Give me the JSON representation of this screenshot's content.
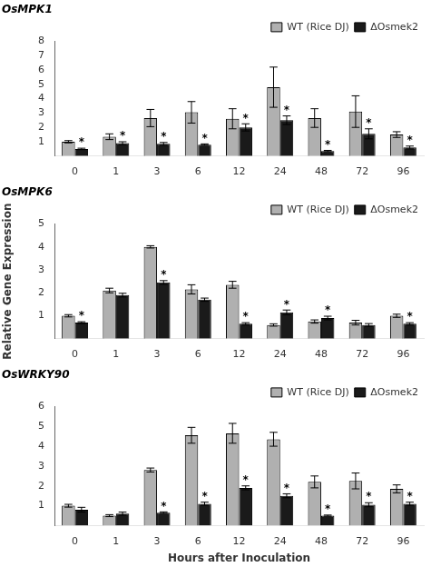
{
  "chart_data": [
    {
      "type": "bar",
      "title": "OsMPK1",
      "categories": [
        "0",
        "1",
        "3",
        "6",
        "12",
        "24",
        "48",
        "72",
        "96"
      ],
      "series": [
        {
          "name": "WT (Rice DJ)",
          "color": "#b0b0b0",
          "values": [
            1.0,
            1.35,
            2.65,
            3.05,
            2.6,
            4.8,
            2.65,
            3.1,
            1.5
          ],
          "errors": [
            0.08,
            0.2,
            0.6,
            0.75,
            0.7,
            1.4,
            0.65,
            1.1,
            0.2
          ],
          "significant": [
            false,
            false,
            false,
            false,
            false,
            false,
            false,
            false,
            false
          ]
        },
        {
          "name": "ΔOsmek2",
          "color": "#1a1a1a",
          "values": [
            0.5,
            0.9,
            0.85,
            0.8,
            2.0,
            2.5,
            0.35,
            1.55,
            0.6
          ],
          "errors": [
            0.05,
            0.1,
            0.1,
            0.05,
            0.25,
            0.3,
            0.05,
            0.35,
            0.1
          ],
          "significant": [
            true,
            true,
            true,
            true,
            true,
            true,
            true,
            true,
            true
          ]
        }
      ],
      "annotation": "*",
      "ylim": [
        0,
        8
      ],
      "yticks": [
        1,
        2,
        3,
        4,
        5,
        6,
        7,
        8
      ],
      "grid": false,
      "legend": "upper right"
    },
    {
      "type": "bar",
      "title": "OsMPK6",
      "categories": [
        "0",
        "1",
        "3",
        "6",
        "12",
        "24",
        "48",
        "72",
        "96"
      ],
      "series": [
        {
          "name": "WT (Rice DJ)",
          "color": "#b0b0b0",
          "values": [
            1.0,
            2.1,
            4.0,
            2.15,
            2.35,
            0.6,
            0.75,
            0.7,
            1.0
          ],
          "errors": [
            0.05,
            0.1,
            0.05,
            0.2,
            0.15,
            0.05,
            0.07,
            0.1,
            0.07
          ],
          "significant": [
            false,
            false,
            false,
            false,
            false,
            false,
            false,
            false,
            false
          ]
        },
        {
          "name": "ΔOsmek2",
          "color": "#1a1a1a",
          "values": [
            0.7,
            1.9,
            2.45,
            1.7,
            0.65,
            1.15,
            0.9,
            0.6,
            0.65
          ],
          "errors": [
            0.04,
            0.08,
            0.08,
            0.07,
            0.05,
            0.1,
            0.08,
            0.06,
            0.05
          ],
          "significant": [
            true,
            false,
            true,
            false,
            true,
            true,
            true,
            false,
            true
          ]
        }
      ],
      "annotation": "*",
      "ylabel": "Relative Gene Expression",
      "ylim": [
        0,
        5
      ],
      "yticks": [
        1,
        2,
        3,
        4,
        5
      ],
      "grid": false,
      "legend": "upper right"
    },
    {
      "type": "bar",
      "title": "OsWRKY90",
      "categories": [
        "0",
        "1",
        "3",
        "6",
        "12",
        "24",
        "48",
        "72",
        "96"
      ],
      "series": [
        {
          "name": "WT (Rice DJ)",
          "color": "#b0b0b0",
          "values": [
            1.0,
            0.5,
            2.8,
            4.55,
            4.65,
            4.35,
            2.2,
            2.25,
            1.85
          ],
          "errors": [
            0.07,
            0.05,
            0.1,
            0.4,
            0.5,
            0.35,
            0.3,
            0.4,
            0.2
          ],
          "significant": [
            false,
            false,
            false,
            false,
            false,
            false,
            false,
            false,
            false
          ]
        },
        {
          "name": "ΔOsmek2",
          "color": "#1a1a1a",
          "values": [
            0.8,
            0.6,
            0.65,
            1.1,
            1.9,
            1.5,
            0.5,
            1.05,
            1.1
          ],
          "errors": [
            0.12,
            0.08,
            0.04,
            0.08,
            0.1,
            0.1,
            0.03,
            0.1,
            0.08
          ],
          "significant": [
            false,
            false,
            true,
            true,
            true,
            true,
            true,
            true,
            true
          ]
        }
      ],
      "annotation": "*",
      "xlabel": "Hours after Inoculation",
      "ylim": [
        0,
        6
      ],
      "yticks": [
        1,
        2,
        3,
        4,
        5,
        6
      ],
      "grid": false,
      "legend": "upper right"
    }
  ]
}
